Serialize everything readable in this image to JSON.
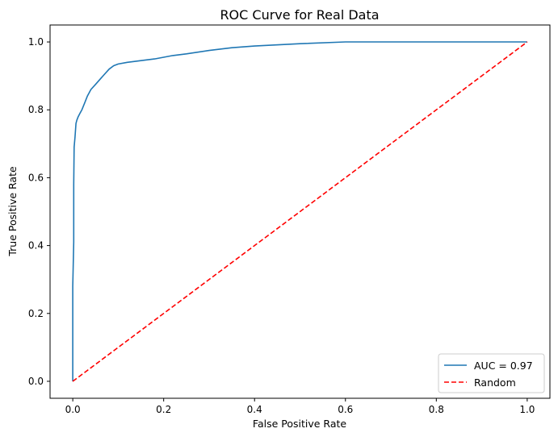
{
  "chart_data": {
    "type": "line",
    "title": "ROC Curve for Real Data",
    "xlabel": "False Positive Rate",
    "ylabel": "True Positive Rate",
    "xlim": [
      -0.05,
      1.05
    ],
    "ylim": [
      -0.05,
      1.05
    ],
    "x_ticks": [
      "0.0",
      "0.2",
      "0.4",
      "0.6",
      "0.8",
      "1.0"
    ],
    "y_ticks": [
      "0.0",
      "0.2",
      "0.4",
      "0.6",
      "0.8",
      "1.0"
    ],
    "grid": false,
    "legend_position": "lower right",
    "series": [
      {
        "name": "AUC = 0.97",
        "color": "#1f77b4",
        "style": "solid",
        "x": [
          0.0,
          0.0,
          0.002,
          0.002,
          0.003,
          0.005,
          0.006,
          0.007,
          0.009,
          0.012,
          0.016,
          0.02,
          0.026,
          0.032,
          0.04,
          0.05,
          0.06,
          0.07,
          0.08,
          0.09,
          0.1,
          0.12,
          0.15,
          0.18,
          0.2,
          0.22,
          0.25,
          0.3,
          0.35,
          0.4,
          0.5,
          0.6,
          0.8,
          1.0
        ],
        "y": [
          0.0,
          0.28,
          0.41,
          0.58,
          0.69,
          0.72,
          0.74,
          0.76,
          0.77,
          0.78,
          0.79,
          0.8,
          0.82,
          0.84,
          0.86,
          0.875,
          0.89,
          0.905,
          0.92,
          0.93,
          0.935,
          0.94,
          0.945,
          0.95,
          0.955,
          0.96,
          0.965,
          0.975,
          0.983,
          0.988,
          0.995,
          1.0,
          1.0,
          1.0
        ]
      },
      {
        "name": "Random",
        "color": "#ff0000",
        "style": "dashed",
        "x": [
          0.0,
          1.0
        ],
        "y": [
          0.0,
          1.0
        ]
      }
    ]
  }
}
